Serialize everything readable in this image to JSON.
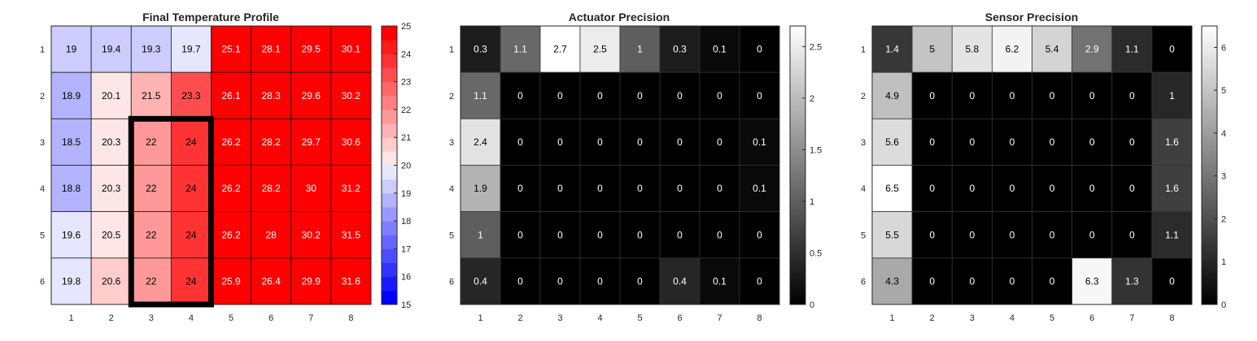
{
  "chart_data": [
    {
      "type": "heatmap",
      "title": "Final Temperature Profile",
      "x_ticks": [
        "1",
        "2",
        "3",
        "4",
        "5",
        "6",
        "7",
        "8"
      ],
      "y_ticks": [
        "1",
        "2",
        "3",
        "4",
        "5",
        "6"
      ],
      "values": [
        [
          19,
          19.4,
          19.3,
          19.7,
          25.1,
          28.1,
          29.5,
          30.1
        ],
        [
          18.9,
          20.1,
          21.5,
          23.3,
          26.1,
          28.3,
          29.6,
          30.2
        ],
        [
          18.5,
          20.3,
          22,
          24,
          26.2,
          28.2,
          29.7,
          30.6
        ],
        [
          18.8,
          20.3,
          22,
          24,
          26.2,
          28.2,
          30,
          31.2
        ],
        [
          19.6,
          20.5,
          22,
          24,
          26.2,
          28,
          30.2,
          31.5
        ],
        [
          19.8,
          20.6,
          22,
          24,
          25.9,
          26.4,
          29.9,
          31.6
        ]
      ],
      "colormap": "blue-white-red",
      "colorbar": {
        "range": [
          15,
          25
        ],
        "ticks": [
          "15",
          "16",
          "17",
          "18",
          "19",
          "20",
          "21",
          "22",
          "23",
          "24",
          "25"
        ],
        "center": 20,
        "steps": 20
      },
      "highlight": {
        "rows": [
          3,
          6
        ],
        "cols": [
          3,
          4
        ]
      }
    },
    {
      "type": "heatmap",
      "title": "Actuator Precision",
      "x_ticks": [
        "1",
        "2",
        "3",
        "4",
        "5",
        "6",
        "7",
        "8"
      ],
      "y_ticks": [
        "1",
        "2",
        "3",
        "4",
        "5",
        "6"
      ],
      "values": [
        [
          0.3,
          1.1,
          2.7,
          2.5,
          1,
          0.3,
          0.1,
          0
        ],
        [
          1.1,
          0,
          0,
          0,
          0,
          0,
          0,
          0
        ],
        [
          2.4,
          0,
          0,
          0,
          0,
          0,
          0,
          0.1
        ],
        [
          1.9,
          0,
          0,
          0,
          0,
          0,
          0,
          0.1
        ],
        [
          1,
          0,
          0,
          0,
          0,
          0,
          0,
          0
        ],
        [
          0.4,
          0,
          0,
          0,
          0,
          0.4,
          0.1,
          0
        ]
      ],
      "colormap": "gray",
      "colorbar": {
        "range": [
          0,
          2.7
        ],
        "ticks": [
          0,
          0.5,
          1,
          1.5,
          2,
          2.5
        ],
        "tick_labels": [
          "0",
          "0.5",
          "1",
          "1.5",
          "2",
          "2.5"
        ]
      }
    },
    {
      "type": "heatmap",
      "title": "Sensor Precision",
      "x_ticks": [
        "1",
        "2",
        "3",
        "4",
        "5",
        "6",
        "7",
        "8"
      ],
      "y_ticks": [
        "1",
        "2",
        "3",
        "4",
        "5",
        "6"
      ],
      "values": [
        [
          1.4,
          5,
          5.8,
          6.2,
          5.4,
          2.9,
          1.1,
          0
        ],
        [
          4.9,
          0,
          0,
          0,
          0,
          0,
          0,
          1
        ],
        [
          5.6,
          0,
          0,
          0,
          0,
          0,
          0,
          1.6
        ],
        [
          6.5,
          0,
          0,
          0,
          0,
          0,
          0,
          1.6
        ],
        [
          5.5,
          0,
          0,
          0,
          0,
          0,
          0,
          1.1
        ],
        [
          4.3,
          0,
          0,
          0,
          0,
          6.3,
          1.3,
          0
        ]
      ],
      "colormap": "gray",
      "colorbar": {
        "range": [
          0,
          6.5
        ],
        "ticks": [
          0,
          1,
          2,
          3,
          4,
          5,
          6
        ],
        "tick_labels": [
          "0",
          "1",
          "2",
          "3",
          "4",
          "5",
          "6"
        ]
      }
    }
  ]
}
